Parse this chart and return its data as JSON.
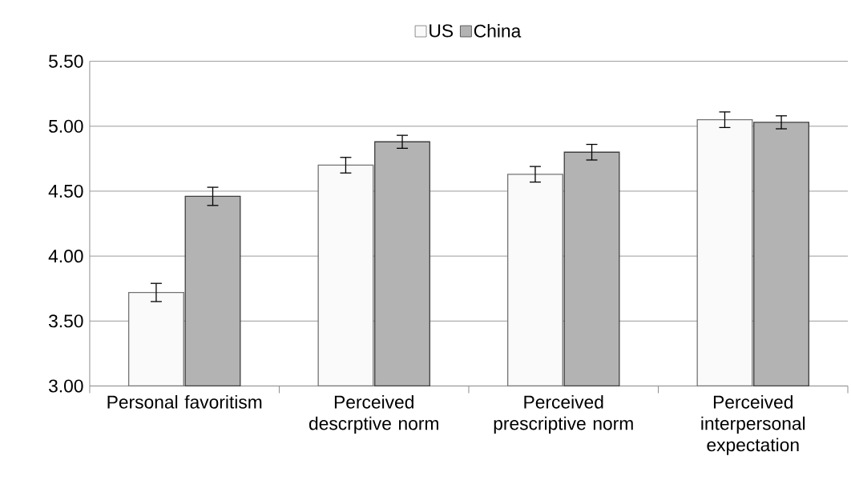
{
  "chart_data": {
    "type": "bar",
    "categories": [
      "Personal favoritism",
      "Perceived descrptive norm",
      "Perceived prescriptive norm",
      "Perceived interpersonal expectation"
    ],
    "series": [
      {
        "name": "US",
        "color": "#fafafa",
        "values": [
          3.72,
          4.7,
          4.63,
          5.05
        ],
        "errors": [
          0.07,
          0.06,
          0.06,
          0.06
        ]
      },
      {
        "name": "China",
        "color": "#b3b3b3",
        "values": [
          4.46,
          4.88,
          4.8,
          5.03
        ],
        "errors": [
          0.07,
          0.05,
          0.06,
          0.05
        ]
      }
    ],
    "ylim": [
      3,
      5.5
    ],
    "yticks": [
      {
        "value": 3,
        "label": "3.00"
      },
      {
        "value": 3.5,
        "label": "3.50"
      },
      {
        "value": 4,
        "label": "4.00"
      },
      {
        "value": 4.5,
        "label": "4.50"
      },
      {
        "value": 5,
        "label": "5.00"
      },
      {
        "value": 5.5,
        "label": "5.50"
      }
    ],
    "grid": "y",
    "legend": "top"
  }
}
